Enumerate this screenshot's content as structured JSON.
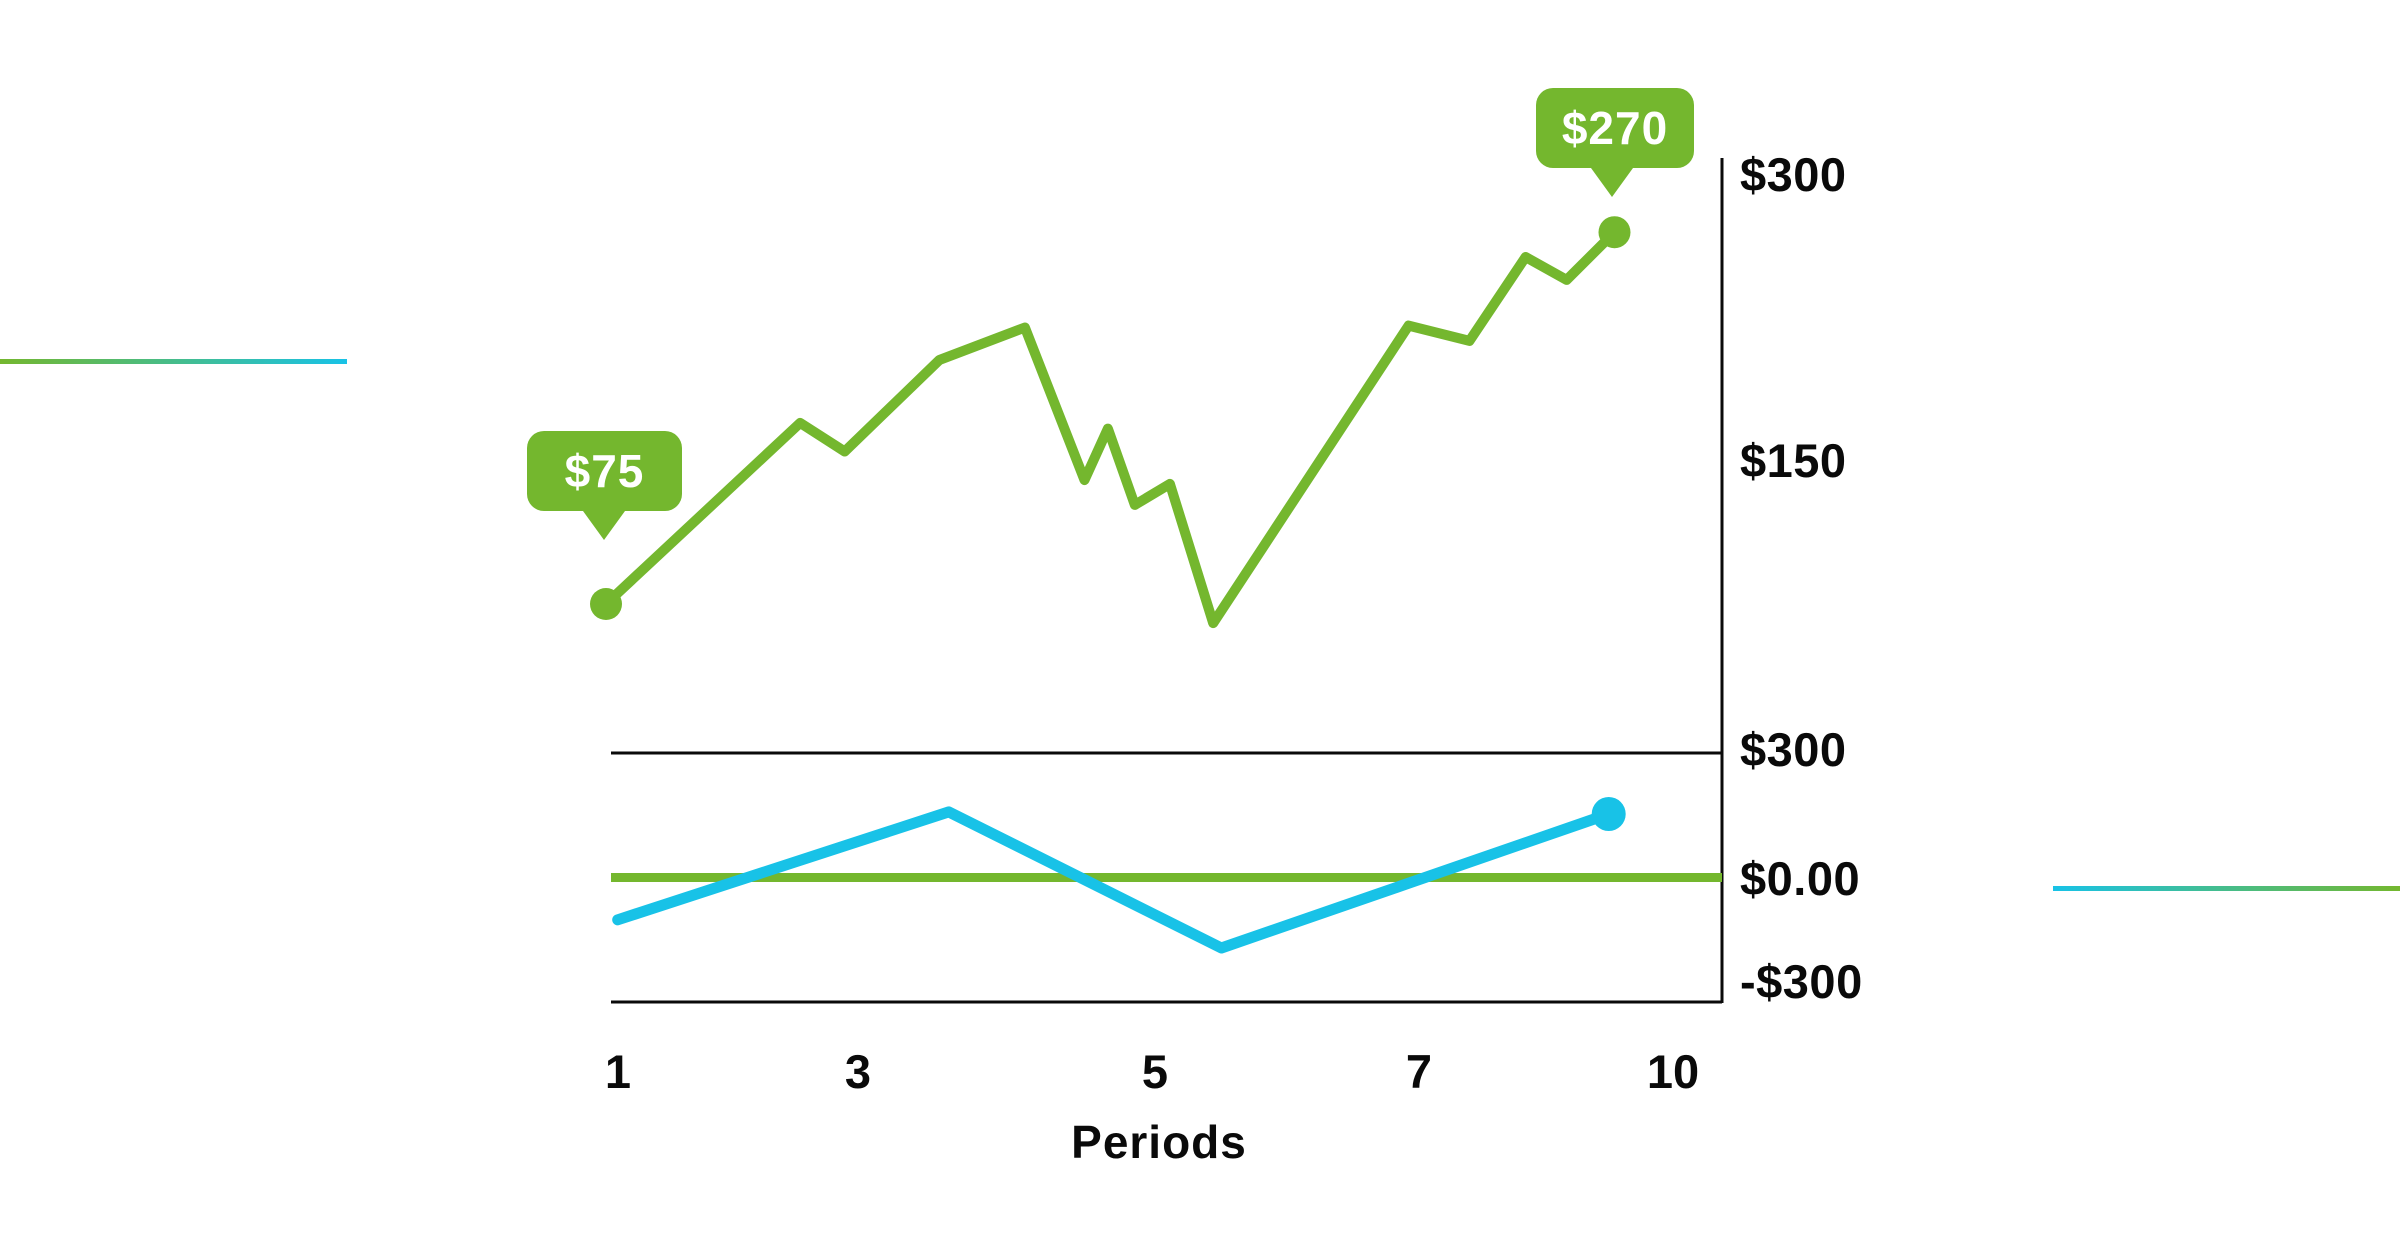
{
  "colors": {
    "green": "#74b72e",
    "cyan": "#18c2e7",
    "ink": "#0a0a0a",
    "badge_text": "#ffffff",
    "background": "#ffffff"
  },
  "upper_chart": {
    "callout_start": "$75",
    "callout_end": "$270",
    "y_axis_labels": [
      "$300",
      "$150"
    ]
  },
  "lower_chart": {
    "y_axis_labels": [
      "$300",
      "$0.00",
      "-$300"
    ]
  },
  "x_axis": {
    "tick_labels": [
      "1",
      "3",
      "5",
      "7",
      "10"
    ],
    "title": "Periods"
  },
  "decorations": {
    "left_edge_line_gradient": [
      "#74b72e",
      "#18c2e7"
    ],
    "right_edge_line_gradient": [
      "#18c2e7",
      "#74b72e"
    ]
  },
  "chart_data": [
    {
      "type": "line",
      "name": "cumulative-value-upper",
      "title": "",
      "xlabel": "Periods",
      "ylabel": "",
      "ylim": [
        0,
        300
      ],
      "y_ticks_shown": [
        "$300",
        "$150"
      ],
      "x_ticks_shown": [
        "1",
        "3",
        "5",
        "7",
        "10"
      ],
      "grid": false,
      "legend": "none",
      "series": [
        {
          "name": "value-over-periods",
          "color": "#74b72e",
          "x": [
            1,
            2.66,
            3.04,
            3.85,
            4.58,
            5.09,
            5.29,
            5.52,
            5.82,
            6.19,
            7.86,
            8.38,
            8.86,
            9.21,
            9.62
          ],
          "y": [
            75,
            170,
            155,
            203,
            220,
            140,
            167,
            127,
            138,
            65,
            221,
            213,
            257,
            245,
            270
          ]
        }
      ],
      "annotations": [
        {
          "label": "$75",
          "x": 1,
          "y": 75,
          "style": "green-speech-bubble"
        },
        {
          "label": "$270",
          "x": 9.62,
          "y": 270,
          "style": "green-speech-bubble"
        }
      ],
      "markers": {
        "start_dot": true,
        "end_dot": true
      }
    },
    {
      "type": "line",
      "name": "period-change-lower",
      "title": "",
      "xlabel": "Periods",
      "ylabel": "",
      "ylim": [
        -300,
        300
      ],
      "y_ticks_shown": [
        "$300",
        "$0.00",
        "-$300"
      ],
      "baseline": {
        "value": 0,
        "color": "#74b72e"
      },
      "frame": {
        "top_value": 300,
        "bottom_value": -300,
        "color": "#0a0a0a"
      },
      "grid": false,
      "legend": "none",
      "series": [
        {
          "name": "net-change",
          "color": "#18c2e7",
          "x": [
            1.1,
            3.93,
            6.26,
            9.57
          ],
          "y": [
            -102,
            158,
            -170,
            153
          ]
        }
      ],
      "markers": {
        "start_dot": false,
        "end_dot": true
      }
    }
  ]
}
